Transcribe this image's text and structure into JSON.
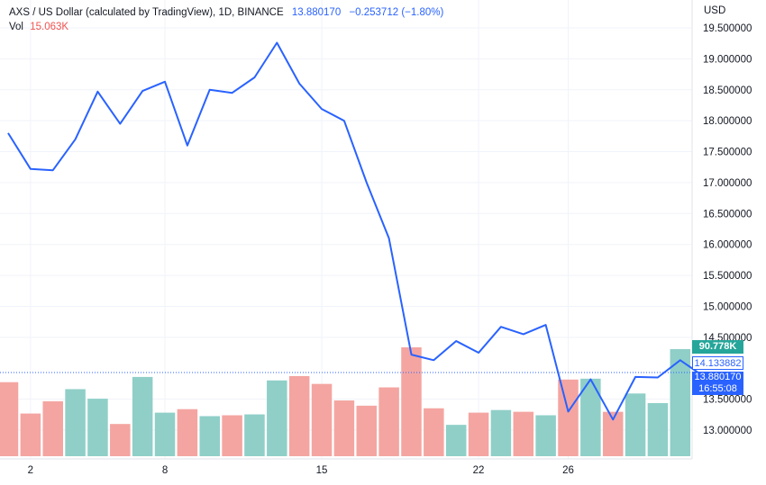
{
  "header": {
    "symbol_line": "AXS / US Dollar (calculated by TradingView), 1D, BINANCE",
    "price": "13.880170",
    "change": "−0.253712 (−1.80%)",
    "vol_label": "Vol",
    "vol_value": "15.063K"
  },
  "currency_label": "USD",
  "price_tags": {
    "volume": "90.778K",
    "previous_close": "14.133882",
    "last_price": "13.880170",
    "countdown": "16:55:08"
  },
  "colors": {
    "line": "#2962ff",
    "volume_up": "#8fcfc8",
    "volume_down": "#f4a5a1",
    "grid": "#f0f3fa",
    "axis_text": "#131722"
  },
  "chart_data": {
    "type": "line",
    "title": "AXS / US Dollar (calculated by TradingView), 1D, BINANCE",
    "x_day_ticks": [
      "2",
      "8",
      "15",
      "22",
      "26"
    ],
    "y_ticks": [
      "19.500000",
      "19.000000",
      "18.500000",
      "18.000000",
      "17.500000",
      "17.000000",
      "16.500000",
      "16.000000",
      "15.500000",
      "15.000000",
      "14.500000",
      "13.500000",
      "13.000000"
    ],
    "ylim": [
      12.7,
      19.85
    ],
    "grid": true,
    "series": [
      {
        "name": "AXS / US Dollar",
        "x": [
          0,
          1,
          2,
          3,
          4,
          5,
          6,
          7,
          8,
          9,
          10,
          11,
          12,
          13,
          14,
          15,
          16,
          17,
          18,
          19,
          20,
          21,
          22,
          23,
          24,
          25,
          26,
          27,
          28,
          29,
          30,
          31
        ],
        "values": [
          17.8,
          17.22,
          17.2,
          17.7,
          18.47,
          17.95,
          18.48,
          18.63,
          17.6,
          18.5,
          18.45,
          18.7,
          19.26,
          18.6,
          18.19,
          18.0,
          17.0,
          16.1,
          14.22,
          14.13,
          14.44,
          14.25,
          14.67,
          14.55,
          14.7,
          13.3,
          13.82,
          13.17,
          13.86,
          13.85,
          14.13,
          13.88
        ]
      }
    ],
    "volume": {
      "name": "Vol",
      "x": [
        0,
        1,
        2,
        3,
        4,
        5,
        6,
        7,
        8,
        9,
        10,
        11,
        12,
        13,
        14,
        15,
        16,
        17,
        18,
        19,
        20,
        21,
        22,
        23,
        24,
        25,
        26,
        27,
        28,
        29,
        30
      ],
      "values": [
        85,
        49,
        63,
        77,
        66,
        37,
        91,
        50,
        54,
        46,
        47,
        48,
        87,
        92,
        83,
        64,
        58,
        79,
        125,
        55,
        36,
        50,
        53,
        51,
        47,
        88,
        89,
        51,
        72,
        61,
        123
      ],
      "direction": [
        "down",
        "down",
        "down",
        "up",
        "up",
        "down",
        "up",
        "up",
        "down",
        "up",
        "down",
        "up",
        "up",
        "down",
        "down",
        "down",
        "down",
        "down",
        "down",
        "down",
        "up",
        "down",
        "up",
        "down",
        "up",
        "down",
        "up",
        "down",
        "up",
        "up",
        "up"
      ]
    }
  }
}
